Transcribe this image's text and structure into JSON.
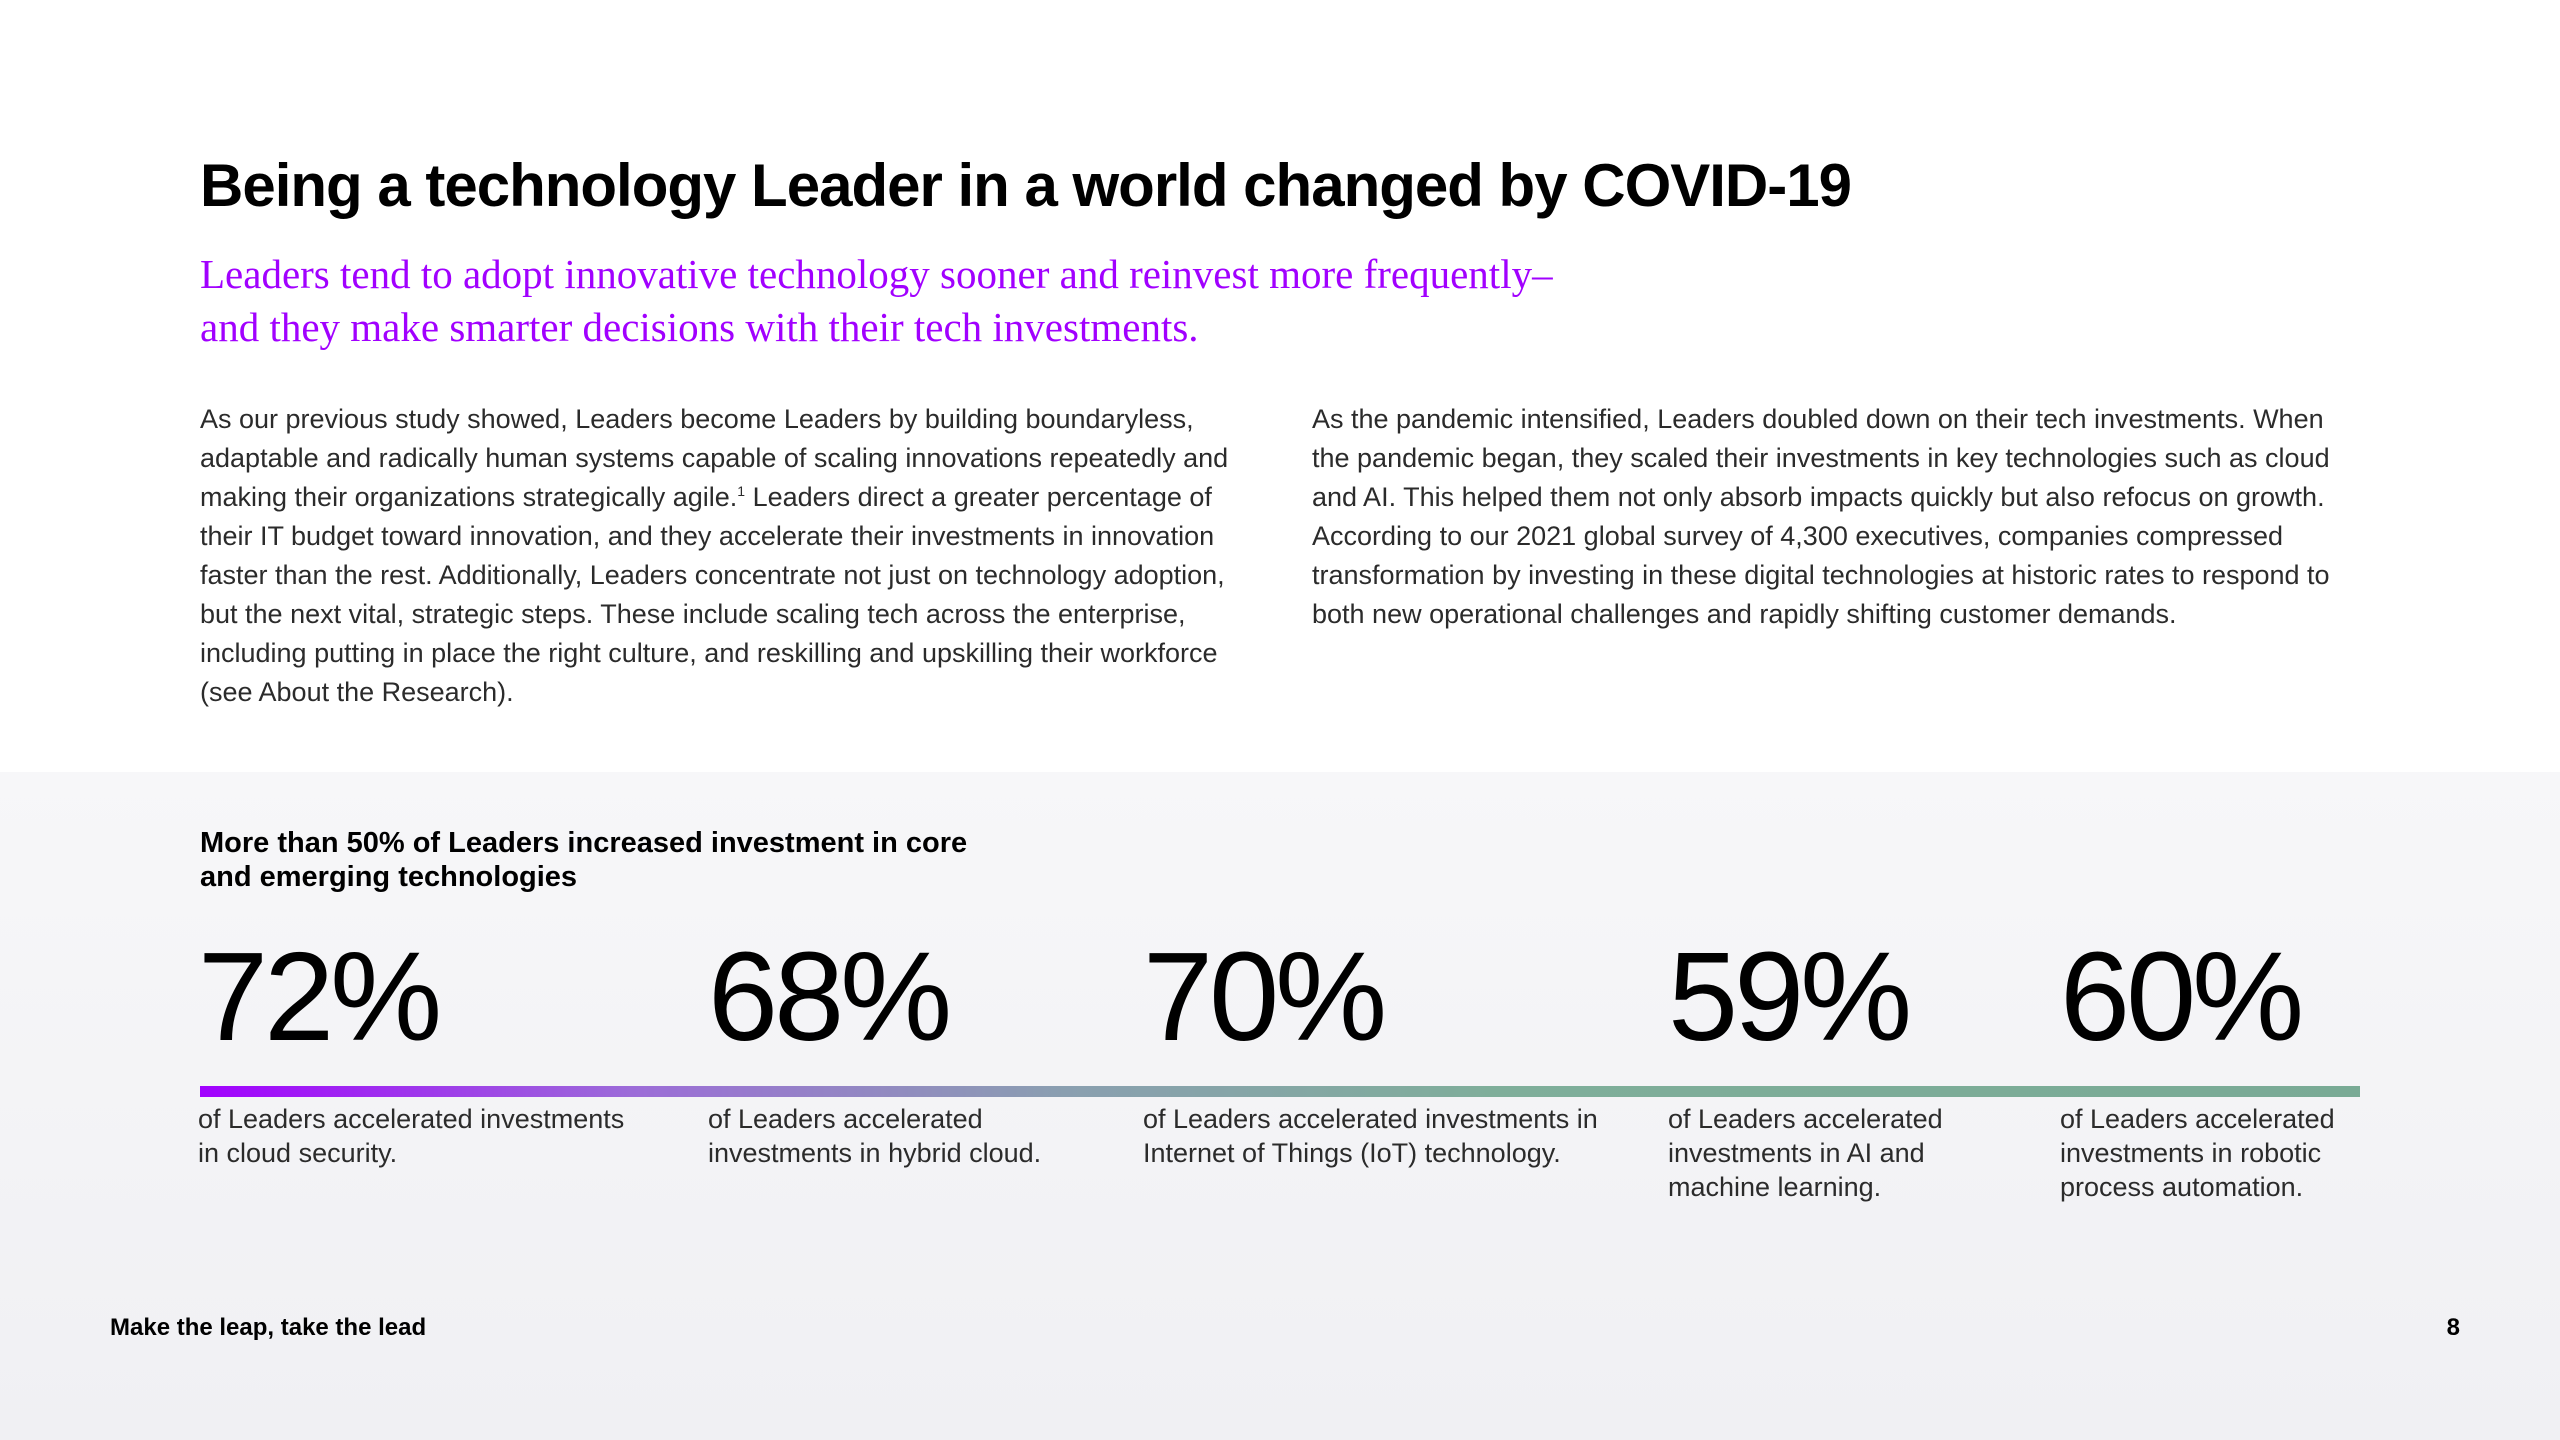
{
  "title": "Being a technology Leader in a world changed by COVID-19",
  "subtitle": "Leaders tend to adopt innovative technology sooner and reinvest more frequently–and they make smarter decisions with their tech investments.",
  "body": {
    "left_part1": "As our previous study showed, Leaders become Leaders by building boundaryless, adaptable and radically human systems capable of scaling innovations repeatedly and making their organizations strategically agile.",
    "left_footnote": "1",
    "left_part2": " Leaders direct a greater percentage of their IT budget toward innovation, and they accelerate their investments in innovation faster than the rest. Additionally, Leaders concentrate not just on technology adoption, but the next vital, strategic steps. These include scaling tech across the enterprise, including putting in place the right culture, and reskilling and upskilling their workforce (see About the Research).",
    "right": "As the pandemic intensified, Leaders doubled down on their tech investments. When the pandemic began, they scaled their investments in key technologies such as cloud and AI. This helped them not only absorb impacts quickly but also refocus on growth. According to our 2021 global survey of 4,300 executives, companies compressed transformation by investing in these digital technologies at historic rates to respond to both new operational challenges and rapidly shifting customer demands."
  },
  "stats": {
    "heading": "More than 50% of Leaders increased investment in core and emerging technologies",
    "items": [
      {
        "value": "72%",
        "label": "of Leaders accelerated investments in cloud security."
      },
      {
        "value": "68%",
        "label": "of Leaders accelerated investments in hybrid cloud."
      },
      {
        "value": "70%",
        "label": "of Leaders accelerated investments in Internet of Things (IoT) technology."
      },
      {
        "value": "59%",
        "label": "of Leaders accelerated investments in AI and machine learning."
      },
      {
        "value": "60%",
        "label": "of Leaders accelerated investments in robotic process automation."
      }
    ]
  },
  "colors": {
    "accent": "#a100ff",
    "bar_end": "#79aa95"
  },
  "footer": {
    "tagline": "Make the leap, take the lead",
    "page_number": "8"
  }
}
